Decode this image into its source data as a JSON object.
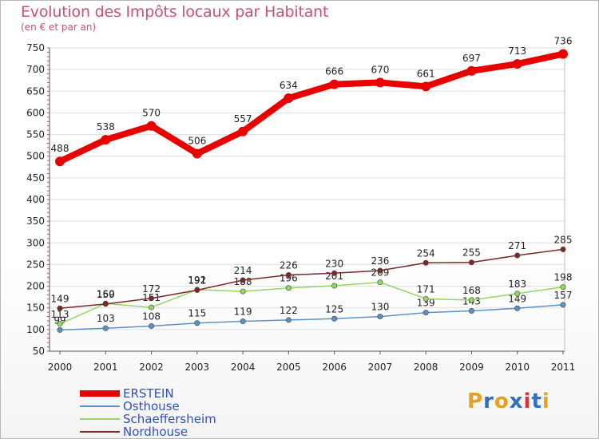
{
  "title": "Evolution des Impôts locaux par Habitant",
  "subtitle": "(en € et par an)",
  "logo": {
    "letters": [
      "P",
      "r",
      "o",
      "x",
      "i",
      "t",
      "i"
    ],
    "colors": [
      "#e8a020",
      "#3070c0",
      "#e8a020",
      "#3070c0",
      "#e03030",
      "#3070c0",
      "#e8a020"
    ]
  },
  "chart_data": {
    "type": "line",
    "title": "Evolution des Impôts locaux par Habitant",
    "subtitle": "(en € et par an)",
    "xlabel": "",
    "ylabel": "",
    "x": [
      "2000",
      "2001",
      "2002",
      "2003",
      "2004",
      "2005",
      "2006",
      "2007",
      "2008",
      "2009",
      "2010",
      "2011"
    ],
    "ylim": [
      50,
      750
    ],
    "yticks": [
      50,
      100,
      150,
      200,
      250,
      300,
      350,
      400,
      450,
      500,
      550,
      600,
      650,
      700,
      750
    ],
    "grid": "horizontal",
    "legend_position": "bottom-left",
    "series": [
      {
        "name": "ERSTEIN",
        "color": "#e80000",
        "values": [
          488,
          538,
          570,
          506,
          557,
          634,
          666,
          670,
          661,
          697,
          713,
          736
        ],
        "labels": [
          "488",
          "538",
          "570",
          "506",
          "557",
          "634",
          "666",
          "670",
          "661",
          "697",
          "713",
          "736"
        ]
      },
      {
        "name": "Osthouse",
        "color": "#5a92c8",
        "values": [
          99,
          103,
          108,
          115,
          119,
          122,
          125,
          130,
          139,
          143,
          149,
          157
        ],
        "labels": [
          "99",
          "103",
          "108",
          "115",
          "119",
          "122",
          "125",
          "130",
          "139",
          "143",
          "149",
          "157"
        ]
      },
      {
        "name": "Schaeffersheim",
        "color": "#90d860",
        "values": [
          113,
          160,
          151,
          192,
          188,
          196,
          201,
          209,
          171,
          168,
          183,
          198
        ],
        "labels": [
          "113",
          "160",
          "151",
          "192",
          "188",
          "196",
          "201",
          "209",
          "171",
          "168",
          "183",
          "198"
        ]
      },
      {
        "name": "Nordhouse",
        "color": "#7a2828",
        "values": [
          149,
          159,
          172,
          191,
          214,
          226,
          230,
          236,
          254,
          255,
          271,
          285
        ],
        "labels": [
          "149",
          "159",
          "172",
          "191",
          "214",
          "226",
          "230",
          "236",
          "254",
          "255",
          "271",
          "285"
        ]
      }
    ]
  }
}
